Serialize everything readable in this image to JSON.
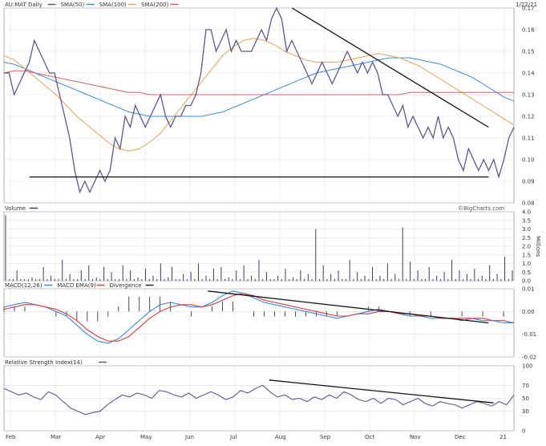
{
  "chart_data": [
    {
      "type": "line",
      "title": "AU:MAT Daily",
      "date_label": "1/22/21",
      "legend": [
        {
          "label": "AU:MAT Daily",
          "color": "#5a5a8c"
        },
        {
          "label": "SMA(50)",
          "color": "#3b8ad8"
        },
        {
          "label": "SMA(100)",
          "color": "#e0a35c"
        },
        {
          "label": "SMA(200)",
          "color": "#d96060"
        }
      ],
      "ylim": [
        0.08,
        0.17
      ],
      "y_ticks": [
        "0.17",
        "0.16",
        "0.15",
        "0.14",
        "0.13",
        "0.12",
        "0.11",
        "0.10",
        "0.09",
        "0.08"
      ],
      "series": [
        {
          "name": "AU:MAT Daily",
          "color": "#5a5a8c",
          "values": [
            0.14,
            0.14,
            0.13,
            0.135,
            0.14,
            0.145,
            0.155,
            0.15,
            0.145,
            0.14,
            0.14,
            0.13,
            0.12,
            0.11,
            0.095,
            0.085,
            0.09,
            0.085,
            0.09,
            0.095,
            0.09,
            0.095,
            0.11,
            0.105,
            0.12,
            0.115,
            0.125,
            0.12,
            0.115,
            0.12,
            0.125,
            0.13,
            0.12,
            0.115,
            0.12,
            0.12,
            0.125,
            0.125,
            0.13,
            0.14,
            0.16,
            0.16,
            0.15,
            0.155,
            0.16,
            0.15,
            0.155,
            0.15,
            0.15,
            0.15,
            0.155,
            0.16,
            0.155,
            0.165,
            0.17,
            0.165,
            0.15,
            0.155,
            0.15,
            0.145,
            0.14,
            0.135,
            0.14,
            0.145,
            0.14,
            0.135,
            0.14,
            0.145,
            0.15,
            0.145,
            0.14,
            0.145,
            0.14,
            0.145,
            0.14,
            0.13,
            0.13,
            0.125,
            0.12,
            0.125,
            0.115,
            0.12,
            0.115,
            0.11,
            0.115,
            0.11,
            0.12,
            0.11,
            0.115,
            0.11,
            0.1,
            0.095,
            0.105,
            0.1,
            0.095,
            0.1,
            0.095,
            0.1,
            0.092,
            0.1,
            0.11,
            0.115
          ]
        },
        {
          "name": "SMA(50)",
          "color": "#3b8ad8",
          "values": [
            0.145,
            0.144,
            0.142,
            0.14,
            0.138,
            0.136,
            0.134,
            0.132,
            0.13,
            0.128,
            0.126,
            0.124,
            0.122,
            0.121,
            0.12,
            0.12,
            0.12,
            0.12,
            0.12,
            0.12,
            0.121,
            0.122,
            0.124,
            0.126,
            0.128,
            0.13,
            0.132,
            0.134,
            0.136,
            0.138,
            0.14,
            0.141,
            0.142,
            0.143,
            0.144,
            0.145,
            0.146,
            0.147,
            0.147,
            0.147,
            0.146,
            0.145,
            0.144,
            0.142,
            0.14,
            0.138,
            0.135,
            0.132,
            0.129,
            0.127
          ]
        },
        {
          "name": "SMA(100)",
          "color": "#e0a35c",
          "values": [
            0.148,
            0.146,
            0.142,
            0.138,
            0.134,
            0.13,
            0.125,
            0.12,
            0.116,
            0.112,
            0.108,
            0.105,
            0.104,
            0.105,
            0.108,
            0.112,
            0.118,
            0.124,
            0.13,
            0.136,
            0.142,
            0.148,
            0.152,
            0.155,
            0.156,
            0.155,
            0.153,
            0.15,
            0.148,
            0.146,
            0.145,
            0.145,
            0.145,
            0.146,
            0.147,
            0.148,
            0.149,
            0.148,
            0.147,
            0.145,
            0.143,
            0.14,
            0.137,
            0.134,
            0.131,
            0.128,
            0.125,
            0.122,
            0.119,
            0.116
          ]
        },
        {
          "name": "SMA(200)",
          "color": "#d96060",
          "values": [
            0.14,
            0.141,
            0.141,
            0.14,
            0.139,
            0.138,
            0.137,
            0.136,
            0.135,
            0.134,
            0.133,
            0.132,
            0.131,
            0.131,
            0.13,
            0.13,
            0.13,
            0.13,
            0.13,
            0.13,
            0.13,
            0.13,
            0.13,
            0.13,
            0.13,
            0.13,
            0.13,
            0.13,
            0.13,
            0.13,
            0.13,
            0.13,
            0.13,
            0.13,
            0.13,
            0.13,
            0.13,
            0.13,
            0.13,
            0.131,
            0.131,
            0.131,
            0.131,
            0.131,
            0.131,
            0.131,
            0.131,
            0.131,
            0.131,
            0.131
          ]
        }
      ],
      "trendlines": [
        {
          "x": [
            0.05,
            0.95
          ],
          "y": [
            0.092,
            0.092
          ]
        },
        {
          "x": [
            0.565,
            0.95
          ],
          "y": [
            0.17,
            0.115
          ]
        }
      ]
    },
    {
      "type": "bar",
      "title": "Volume",
      "ylabel": "Millions",
      "ylim": [
        0,
        4.0
      ],
      "y_ticks": [
        "4.0",
        "3.5",
        "3.0",
        "2.5",
        "2.0",
        "1.5",
        "1.0",
        "0.5",
        "0.0"
      ],
      "watermark": "©BigCharts.com",
      "color": "#3b3b6b",
      "values": [
        3.8,
        0.1,
        0.1,
        0.6,
        0.1,
        0.1,
        0.1,
        0.2,
        0.1,
        0.1,
        0.8,
        0.1,
        0.3,
        0.1,
        0.1,
        1.2,
        0.1,
        0.4,
        0.1,
        0.1,
        0.6,
        0.1,
        0.9,
        0.1,
        0.2,
        0.1,
        0.8,
        0.1,
        0.5,
        0.1,
        0.1,
        0.9,
        0.1,
        0.6,
        0.1,
        0.2,
        0.1,
        0.7,
        0.1,
        0.3,
        0.1,
        1.0,
        0.1,
        0.2,
        0.8,
        0.1,
        0.1,
        0.4,
        0.1,
        0.5,
        0.1,
        1.0,
        0.1,
        0.3,
        0.1,
        0.7,
        0.1,
        0.8,
        0.1,
        0.2,
        0.1,
        0.6,
        0.1,
        0.9,
        0.1,
        0.3,
        0.1,
        1.2,
        0.1,
        0.5,
        0.1,
        0.1,
        0.3,
        0.1,
        0.7,
        0.1,
        0.2,
        0.1,
        0.6,
        0.1,
        0.4,
        0.1,
        3.0,
        0.1,
        0.9,
        0.1,
        0.4,
        0.1,
        0.6,
        0.1,
        0.1,
        1.2,
        0.1,
        0.5,
        0.1,
        0.3,
        0.1,
        0.8,
        0.1,
        0.3,
        0.1,
        1.0,
        0.1,
        0.4,
        0.1,
        3.1,
        0.1,
        1.1,
        0.1,
        0.6,
        0.1,
        0.1,
        0.8,
        0.1,
        0.3,
        0.1,
        0.5,
        0.1,
        1.2,
        0.1,
        0.6,
        0.1,
        0.4,
        0.1,
        0.7,
        0.1,
        0.3,
        0.1,
        0.9,
        0.1,
        0.4,
        0.1,
        1.4,
        0.1,
        0.6
      ]
    },
    {
      "type": "line",
      "title": "MACD(12,26)",
      "legend": [
        {
          "label": "MACD(12,26)",
          "color": "#3b8ad8"
        },
        {
          "label": "MACD EMA(9)",
          "color": "#d93b3b"
        },
        {
          "label": "Divergence",
          "color": "#222222"
        }
      ],
      "ylim": [
        -0.02,
        0.01
      ],
      "y_ticks": [
        "0.01",
        "0.00",
        "-0.01",
        "-0.02"
      ],
      "series": [
        {
          "name": "MACD(12,26)",
          "color": "#3b8ad8",
          "values": [
            0.002,
            0.003,
            0.004,
            0.003,
            0.002,
            0.0,
            -0.002,
            -0.006,
            -0.01,
            -0.013,
            -0.014,
            -0.012,
            -0.008,
            -0.004,
            0.0,
            0.003,
            0.004,
            0.003,
            0.002,
            0.002,
            0.004,
            0.007,
            0.009,
            0.008,
            0.006,
            0.004,
            0.003,
            0.002,
            0.001,
            0.0,
            -0.001,
            -0.002,
            -0.003,
            -0.002,
            -0.001,
            0.0,
            0.001,
            0.0,
            -0.001,
            -0.002,
            -0.002,
            -0.003,
            -0.003,
            -0.003,
            -0.004,
            -0.003,
            -0.004,
            -0.004,
            -0.005,
            -0.005
          ]
        },
        {
          "name": "MACD EMA(9)",
          "color": "#d93b3b",
          "values": [
            0.001,
            0.002,
            0.003,
            0.003,
            0.002,
            0.001,
            -0.001,
            -0.004,
            -0.008,
            -0.011,
            -0.013,
            -0.013,
            -0.011,
            -0.007,
            -0.003,
            0.0,
            0.002,
            0.003,
            0.003,
            0.002,
            0.003,
            0.005,
            0.007,
            0.008,
            0.007,
            0.005,
            0.004,
            0.003,
            0.002,
            0.001,
            0.0,
            -0.001,
            -0.002,
            -0.002,
            -0.001,
            -0.001,
            0.0,
            0.0,
            -0.001,
            -0.001,
            -0.002,
            -0.002,
            -0.003,
            -0.003,
            -0.003,
            -0.003,
            -0.003,
            -0.004,
            -0.004,
            -0.005
          ]
        }
      ],
      "trendlines": [
        {
          "x": [
            0.4,
            0.95
          ],
          "y": [
            0.009,
            -0.005
          ]
        }
      ]
    },
    {
      "type": "line",
      "title": "Relative Strength Index(14)",
      "ylim": [
        0,
        100
      ],
      "y_ticks": [
        "100",
        "70",
        "50",
        "30",
        "0"
      ],
      "series": [
        {
          "name": "Relative Strength Index(14)",
          "color": "#5a5a8c",
          "values": [
            65,
            60,
            55,
            58,
            52,
            48,
            60,
            55,
            45,
            35,
            30,
            25,
            28,
            30,
            40,
            48,
            55,
            52,
            58,
            55,
            50,
            62,
            60,
            55,
            52,
            58,
            50,
            55,
            60,
            55,
            48,
            52,
            62,
            58,
            65,
            70,
            60,
            52,
            55,
            48,
            50,
            45,
            52,
            48,
            55,
            50,
            60,
            55,
            48,
            45,
            50,
            42,
            50,
            48,
            40,
            45,
            50,
            42,
            38,
            45,
            42,
            40,
            35,
            40,
            45,
            42,
            38,
            45,
            40,
            55
          ]
        }
      ],
      "trendlines": [
        {
          "x": [
            0.52,
            0.96
          ],
          "y": [
            78,
            43
          ]
        }
      ]
    }
  ],
  "x_axis": {
    "ticks": [
      "Feb",
      "Mar",
      "Apr",
      "May",
      "Jun",
      "Jul",
      "Aug",
      "Sep",
      "Oct",
      "Nov",
      "Dec",
      "21"
    ]
  }
}
